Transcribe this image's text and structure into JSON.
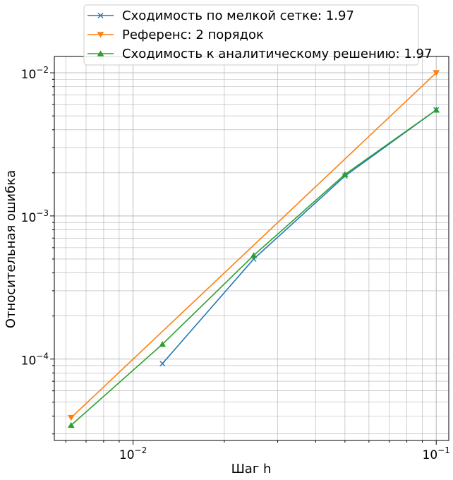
{
  "chart_data": {
    "type": "line",
    "xscale": "log",
    "yscale": "log",
    "xlabel": "Шаг h",
    "ylabel": "Относительная ошибка",
    "xlim": [
      0.0055,
      0.11
    ],
    "ylim": [
      2.7e-05,
      0.013
    ],
    "grid": "major+minor",
    "legend_position": "top-center",
    "x_ticks": [
      {
        "value": 0.01,
        "base": "10",
        "exp": "−2"
      },
      {
        "value": 0.1,
        "base": "10",
        "exp": "−1"
      }
    ],
    "y_ticks": [
      {
        "value": 0.0001,
        "base": "10",
        "exp": "−4"
      },
      {
        "value": 0.001,
        "base": "10",
        "exp": "−3"
      },
      {
        "value": 0.01,
        "base": "10",
        "exp": "−2"
      }
    ],
    "series": [
      {
        "name": "Сходимость по мелкой сетке: 1.97",
        "color": "#1f77b4",
        "marker": "x",
        "x": [
          0.1,
          0.05,
          0.025,
          0.0125
        ],
        "y": [
          0.0055,
          0.0019,
          0.0005,
          9.3e-05
        ]
      },
      {
        "name": "Референс: 2 порядок",
        "color": "#ff7f0e",
        "marker": "triangle-down",
        "x": [
          0.1,
          0.00625
        ],
        "y": [
          0.01,
          3.9e-05
        ]
      },
      {
        "name": "Сходимость к аналитическому решению: 1.97",
        "color": "#2ca02c",
        "marker": "triangle-up",
        "x": [
          0.1,
          0.05,
          0.025,
          0.0125,
          0.00625
        ],
        "y": [
          0.0055,
          0.00195,
          0.00053,
          0.000127,
          3.45e-05
        ]
      }
    ]
  }
}
